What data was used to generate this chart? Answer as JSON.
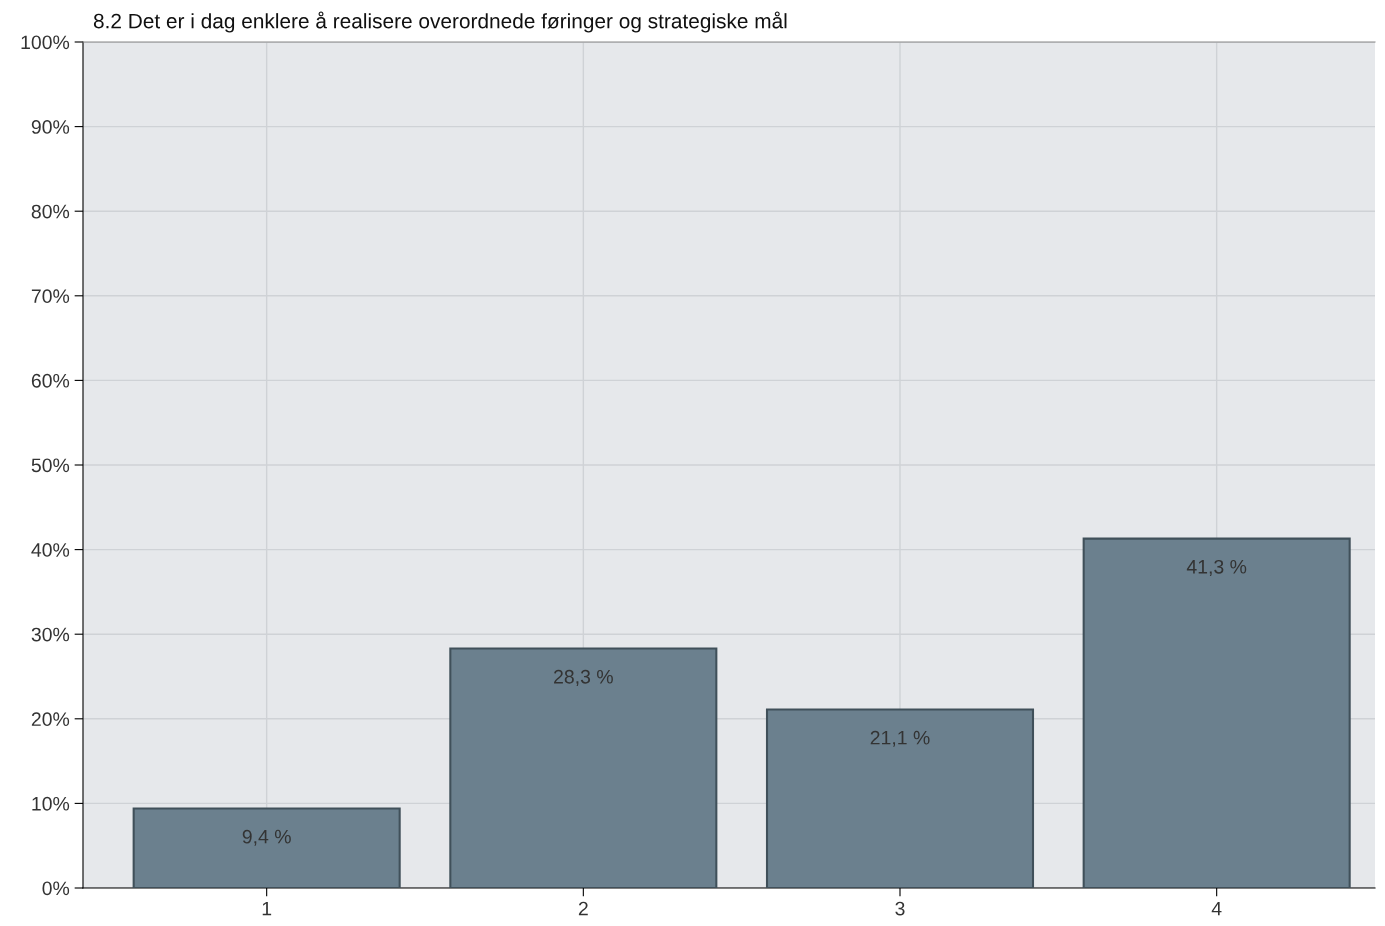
{
  "chart_data": {
    "type": "bar",
    "title": "8.2 Det er i dag enklere å realisere overordnede føringer og strategiske mål",
    "categories": [
      "1",
      "2",
      "3",
      "4"
    ],
    "values": [
      9.4,
      28.3,
      21.1,
      41.3
    ],
    "value_labels": [
      "9,4 %",
      "28,3 %",
      "21,1 %",
      "41,3 %"
    ],
    "color": "#6b808e",
    "ylim": [
      0,
      100
    ],
    "yticks": [
      {
        "value": 0,
        "label": "0%"
      },
      {
        "value": 10,
        "label": "10%"
      },
      {
        "value": 20,
        "label": "20%"
      },
      {
        "value": 30,
        "label": "30%"
      },
      {
        "value": 40,
        "label": "40%"
      },
      {
        "value": 50,
        "label": "50%"
      },
      {
        "value": 60,
        "label": "60%"
      },
      {
        "value": 70,
        "label": "70%"
      },
      {
        "value": 80,
        "label": "80%"
      },
      {
        "value": 90,
        "label": "90%"
      },
      {
        "value": 100,
        "label": "100%"
      }
    ],
    "grid": true
  }
}
